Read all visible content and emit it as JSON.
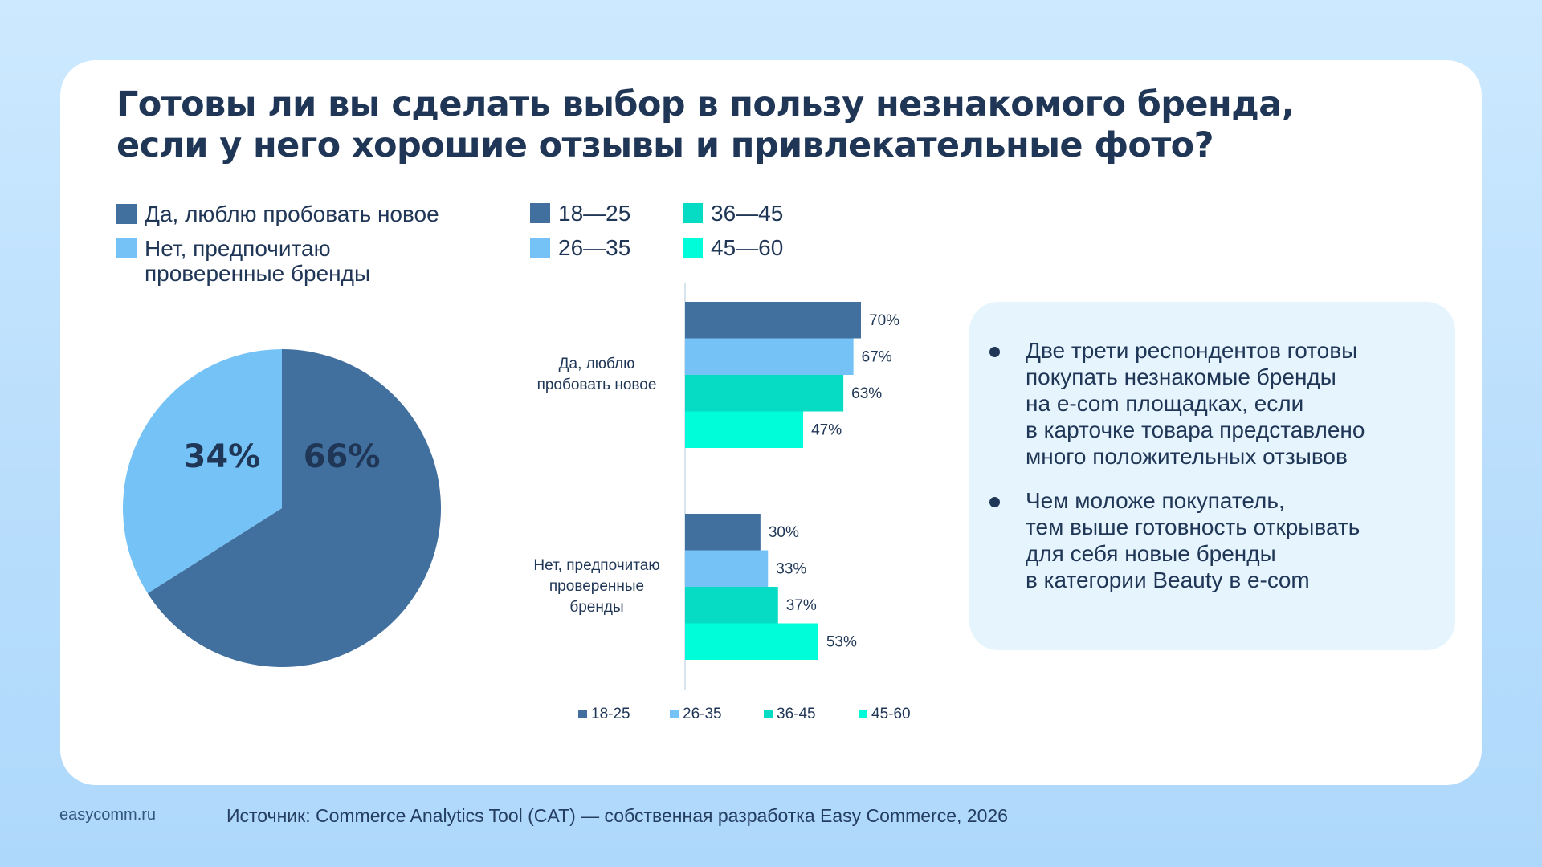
{
  "title_lines": [
    "Готовы ли вы сделать выбор в пользу незнакомого бренда,",
    "если у него хорошие отзывы и привлекательные фото?"
  ],
  "colors": {
    "yes": "#41709f",
    "no": "#74c2f6",
    "age_18_25": "#41709f",
    "age_26_35": "#74c2f6",
    "age_36_45": "#05dcc3",
    "age_45_60": "#00fdd9",
    "text": "#1f3656"
  },
  "pie_legend": [
    {
      "label": "Да, люблю пробовать новое",
      "color": "#41709f"
    },
    {
      "label": "Нет, предпочитаю\nпроверенные бренды",
      "color": "#74c2f6"
    }
  ],
  "age_legend": [
    {
      "label": "18—25",
      "color": "#41709f"
    },
    {
      "label": "26—35",
      "color": "#74c2f6"
    },
    {
      "label": "36—45",
      "color": "#05dcc3"
    },
    {
      "label": "45—60",
      "color": "#00fdd9"
    }
  ],
  "chart_data": [
    {
      "type": "pie",
      "slices": [
        {
          "name": "Да, люблю пробовать новое",
          "value": 66,
          "label": "66%",
          "color": "#41709f"
        },
        {
          "name": "Нет, предпочитаю проверенные бренды",
          "value": 34,
          "label": "34%",
          "color": "#74c2f6"
        }
      ]
    },
    {
      "type": "bar",
      "orientation": "horizontal",
      "categories": [
        [
          "Да, люблю",
          "пробовать новое"
        ],
        [
          "Нет, предпочитаю",
          "проверенные",
          "бренды"
        ]
      ],
      "series": [
        {
          "name": "18-25",
          "values": [
            70,
            30
          ],
          "labels": [
            "70%",
            "30%"
          ],
          "color": "#41709f"
        },
        {
          "name": "26-35",
          "values": [
            67,
            33
          ],
          "labels": [
            "67%",
            "33%"
          ],
          "color": "#74c2f6"
        },
        {
          "name": "36-45",
          "values": [
            63,
            37
          ],
          "labels": [
            "63%",
            "37%"
          ],
          "color": "#05dcc3"
        },
        {
          "name": "45-60",
          "values": [
            47,
            53
          ],
          "labels": [
            "47%",
            "53%"
          ],
          "color": "#00fdd9"
        }
      ],
      "xlim": [
        0,
        100
      ],
      "grid": false,
      "legend": "bottom"
    }
  ],
  "insights": [
    {
      "lines": [
        "Две трети респондентов готовы",
        "покупать незнакомые бренды",
        "на e-com площадках, если",
        "в карточке товара представлено",
        "много положительных отзывов"
      ]
    },
    {
      "lines": [
        "Чем моложе покупатель,",
        "тем выше готовность открывать",
        "для себя новые бренды",
        "в категории Beauty в e-com"
      ]
    }
  ],
  "footer": {
    "site": "easycomm.ru",
    "source": "Источник: Commerce Analytics Tool (CAT) — собственная разработка Easy Commerce, 2026"
  }
}
